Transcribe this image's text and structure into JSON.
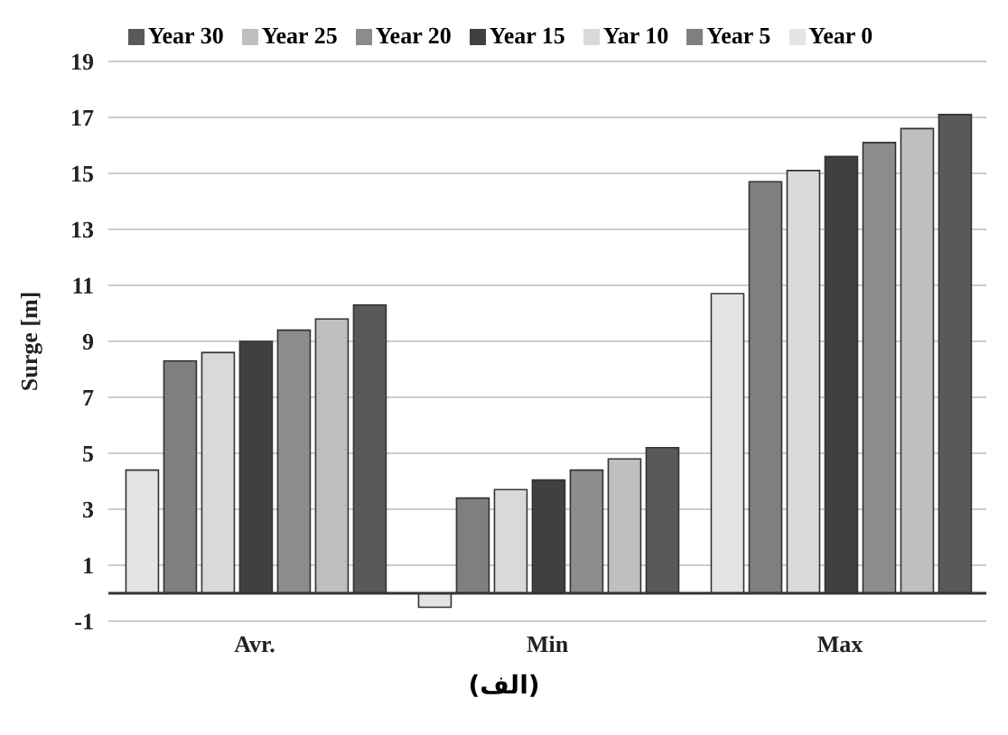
{
  "chart_data": {
    "type": "bar",
    "ylabel": "Surge [m]",
    "categories": [
      "Avr.",
      "Min",
      "Max"
    ],
    "series": [
      {
        "name": "Year 0",
        "color": "#e4e4e4",
        "values": [
          4.4,
          -0.5,
          10.7
        ]
      },
      {
        "name": "Year 5",
        "color": "#7f7f7f",
        "values": [
          8.3,
          3.4,
          14.7
        ]
      },
      {
        "name": "Yar 10",
        "color": "#d9d9d9",
        "values": [
          8.6,
          3.7,
          15.1
        ]
      },
      {
        "name": "Year 15",
        "color": "#404040",
        "values": [
          9.0,
          4.05,
          15.6
        ]
      },
      {
        "name": "Year 20",
        "color": "#8c8c8c",
        "values": [
          9.4,
          4.4,
          16.1
        ]
      },
      {
        "name": "Year 25",
        "color": "#bfbfbf",
        "values": [
          9.8,
          4.8,
          16.6
        ]
      },
      {
        "name": "Year 30",
        "color": "#595959",
        "values": [
          10.3,
          5.2,
          17.1
        ]
      }
    ],
    "ylim": [
      -1,
      19
    ],
    "yticks": [
      -1,
      1,
      3,
      5,
      7,
      9,
      11,
      13,
      15,
      17,
      19
    ],
    "grid": "y",
    "legend": "top",
    "annotations": [
      "(الف)"
    ]
  }
}
